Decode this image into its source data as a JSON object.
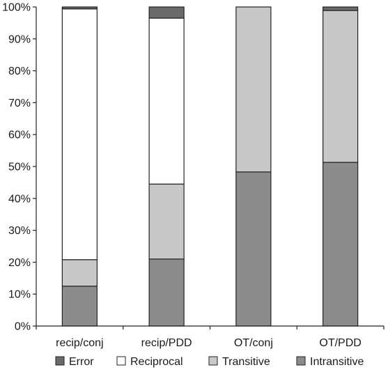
{
  "chart_data": {
    "type": "bar",
    "stacked": true,
    "title": "",
    "xlabel": "",
    "ylabel": "",
    "ylim": [
      0,
      100
    ],
    "yticks": [
      0,
      10,
      20,
      30,
      40,
      50,
      60,
      70,
      80,
      90,
      100
    ],
    "ytick_labels": [
      "0%",
      "10%",
      "20%",
      "30%",
      "40%",
      "50%",
      "60%",
      "70%",
      "80%",
      "90%",
      "100%"
    ],
    "categories": [
      "recip/conj",
      "recip/PDD",
      "OT/conj",
      "OT/PDD"
    ],
    "series": [
      {
        "name": "Intransitive",
        "color": "#8c8c8c",
        "values": [
          12.5,
          21,
          48.3,
          51.3
        ]
      },
      {
        "name": "Transitive",
        "color": "#c8c8c8",
        "values": [
          8.3,
          23.5,
          51.7,
          47.6
        ]
      },
      {
        "name": "Reciprocal",
        "color": "#ffffff",
        "values": [
          78.6,
          52,
          0,
          0
        ]
      },
      {
        "name": "Error",
        "color": "#6a6a6a",
        "values": [
          0.6,
          3.5,
          0,
          1.1
        ]
      }
    ],
    "legend": {
      "placement": "bottom",
      "order": [
        "Error",
        "Reciprocal",
        "Transitive",
        "Intransitive"
      ]
    },
    "grid": false
  }
}
